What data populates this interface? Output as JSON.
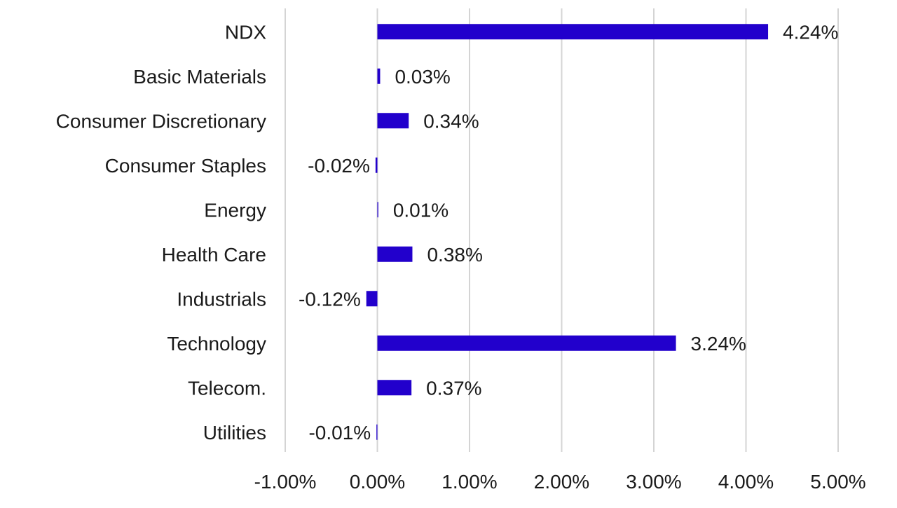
{
  "chart_data": {
    "type": "bar",
    "orientation": "horizontal",
    "title": "",
    "xlabel": "",
    "ylabel": "",
    "categories": [
      "NDX",
      "Basic Materials",
      "Consumer Discretionary",
      "Consumer Staples",
      "Energy",
      "Health Care",
      "Industrials",
      "Technology",
      "Telecom.",
      "Utilities"
    ],
    "values": [
      4.24,
      0.03,
      0.34,
      -0.02,
      0.01,
      0.38,
      -0.12,
      3.24,
      0.37,
      -0.01
    ],
    "value_labels": [
      "4.24%",
      "0.03%",
      "0.34%",
      "-0.02%",
      "0.01%",
      "0.38%",
      "-0.12%",
      "3.24%",
      "0.37%",
      "-0.01%"
    ],
    "xlim": [
      -1.0,
      5.0
    ],
    "xticks": [
      -1,
      0,
      1,
      2,
      3,
      4,
      5
    ],
    "xtick_labels": [
      "-1.00%",
      "0.00%",
      "1.00%",
      "2.00%",
      "3.00%",
      "4.00%",
      "5.00%"
    ],
    "grid": true,
    "legend": "none",
    "bar_color": "#2200cc",
    "grid_color": "#d4d4d4"
  }
}
